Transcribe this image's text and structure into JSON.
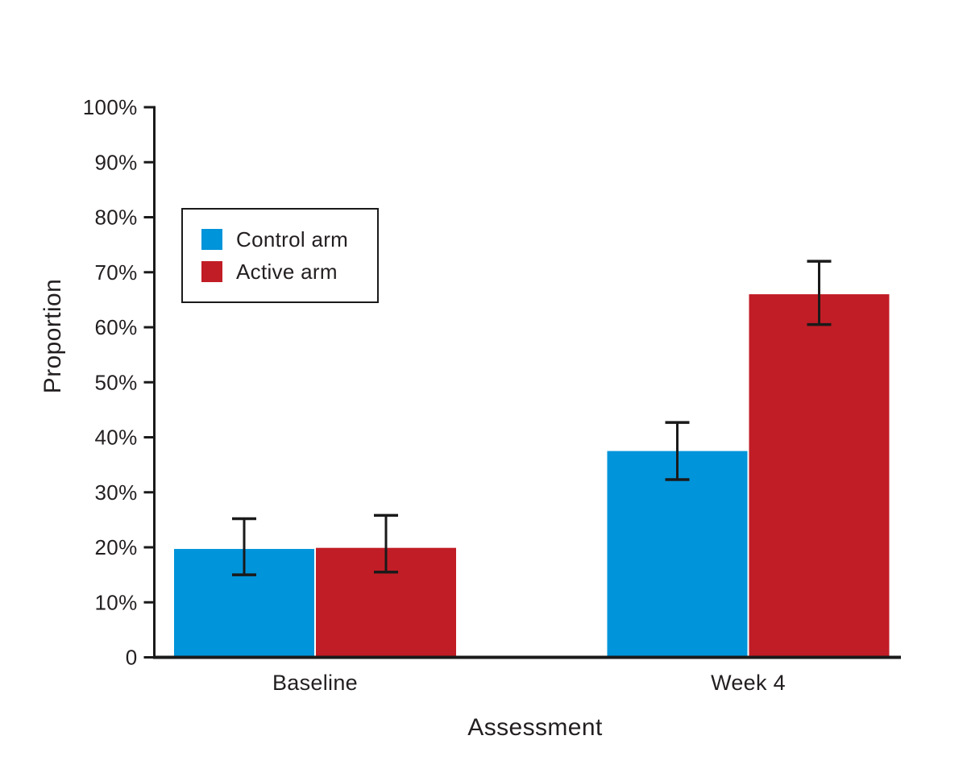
{
  "chart_data": {
    "type": "bar",
    "title": "",
    "xlabel": "Assessment",
    "ylabel": "Proportion",
    "categories": [
      "Baseline",
      "Week 4"
    ],
    "series": [
      {
        "name": "Control arm",
        "color": "#0094DA",
        "values": [
          19.7,
          37.5
        ],
        "err_low": [
          15.0,
          32.3
        ],
        "err_high": [
          25.2,
          42.7
        ]
      },
      {
        "name": "Active arm",
        "color": "#C11D26",
        "values": [
          19.9,
          66.0
        ],
        "err_low": [
          15.5,
          60.5
        ],
        "err_high": [
          25.8,
          72.0
        ]
      }
    ],
    "ylim": [
      0,
      100
    ],
    "y_ticks": [
      {
        "value": 0,
        "label": "0"
      },
      {
        "value": 10,
        "label": "10%"
      },
      {
        "value": 20,
        "label": "20%"
      },
      {
        "value": 30,
        "label": "30%"
      },
      {
        "value": 40,
        "label": "40%"
      },
      {
        "value": 50,
        "label": "50%"
      },
      {
        "value": 60,
        "label": "60%"
      },
      {
        "value": 70,
        "label": "70%"
      },
      {
        "value": 80,
        "label": "80%"
      },
      {
        "value": 90,
        "label": "90%"
      },
      {
        "value": 100,
        "label": "100%"
      }
    ],
    "grid": false,
    "error_bars": true,
    "legend_position": "upper-left",
    "axis_color": "#1A1A1A",
    "text_color": "#231F20"
  }
}
